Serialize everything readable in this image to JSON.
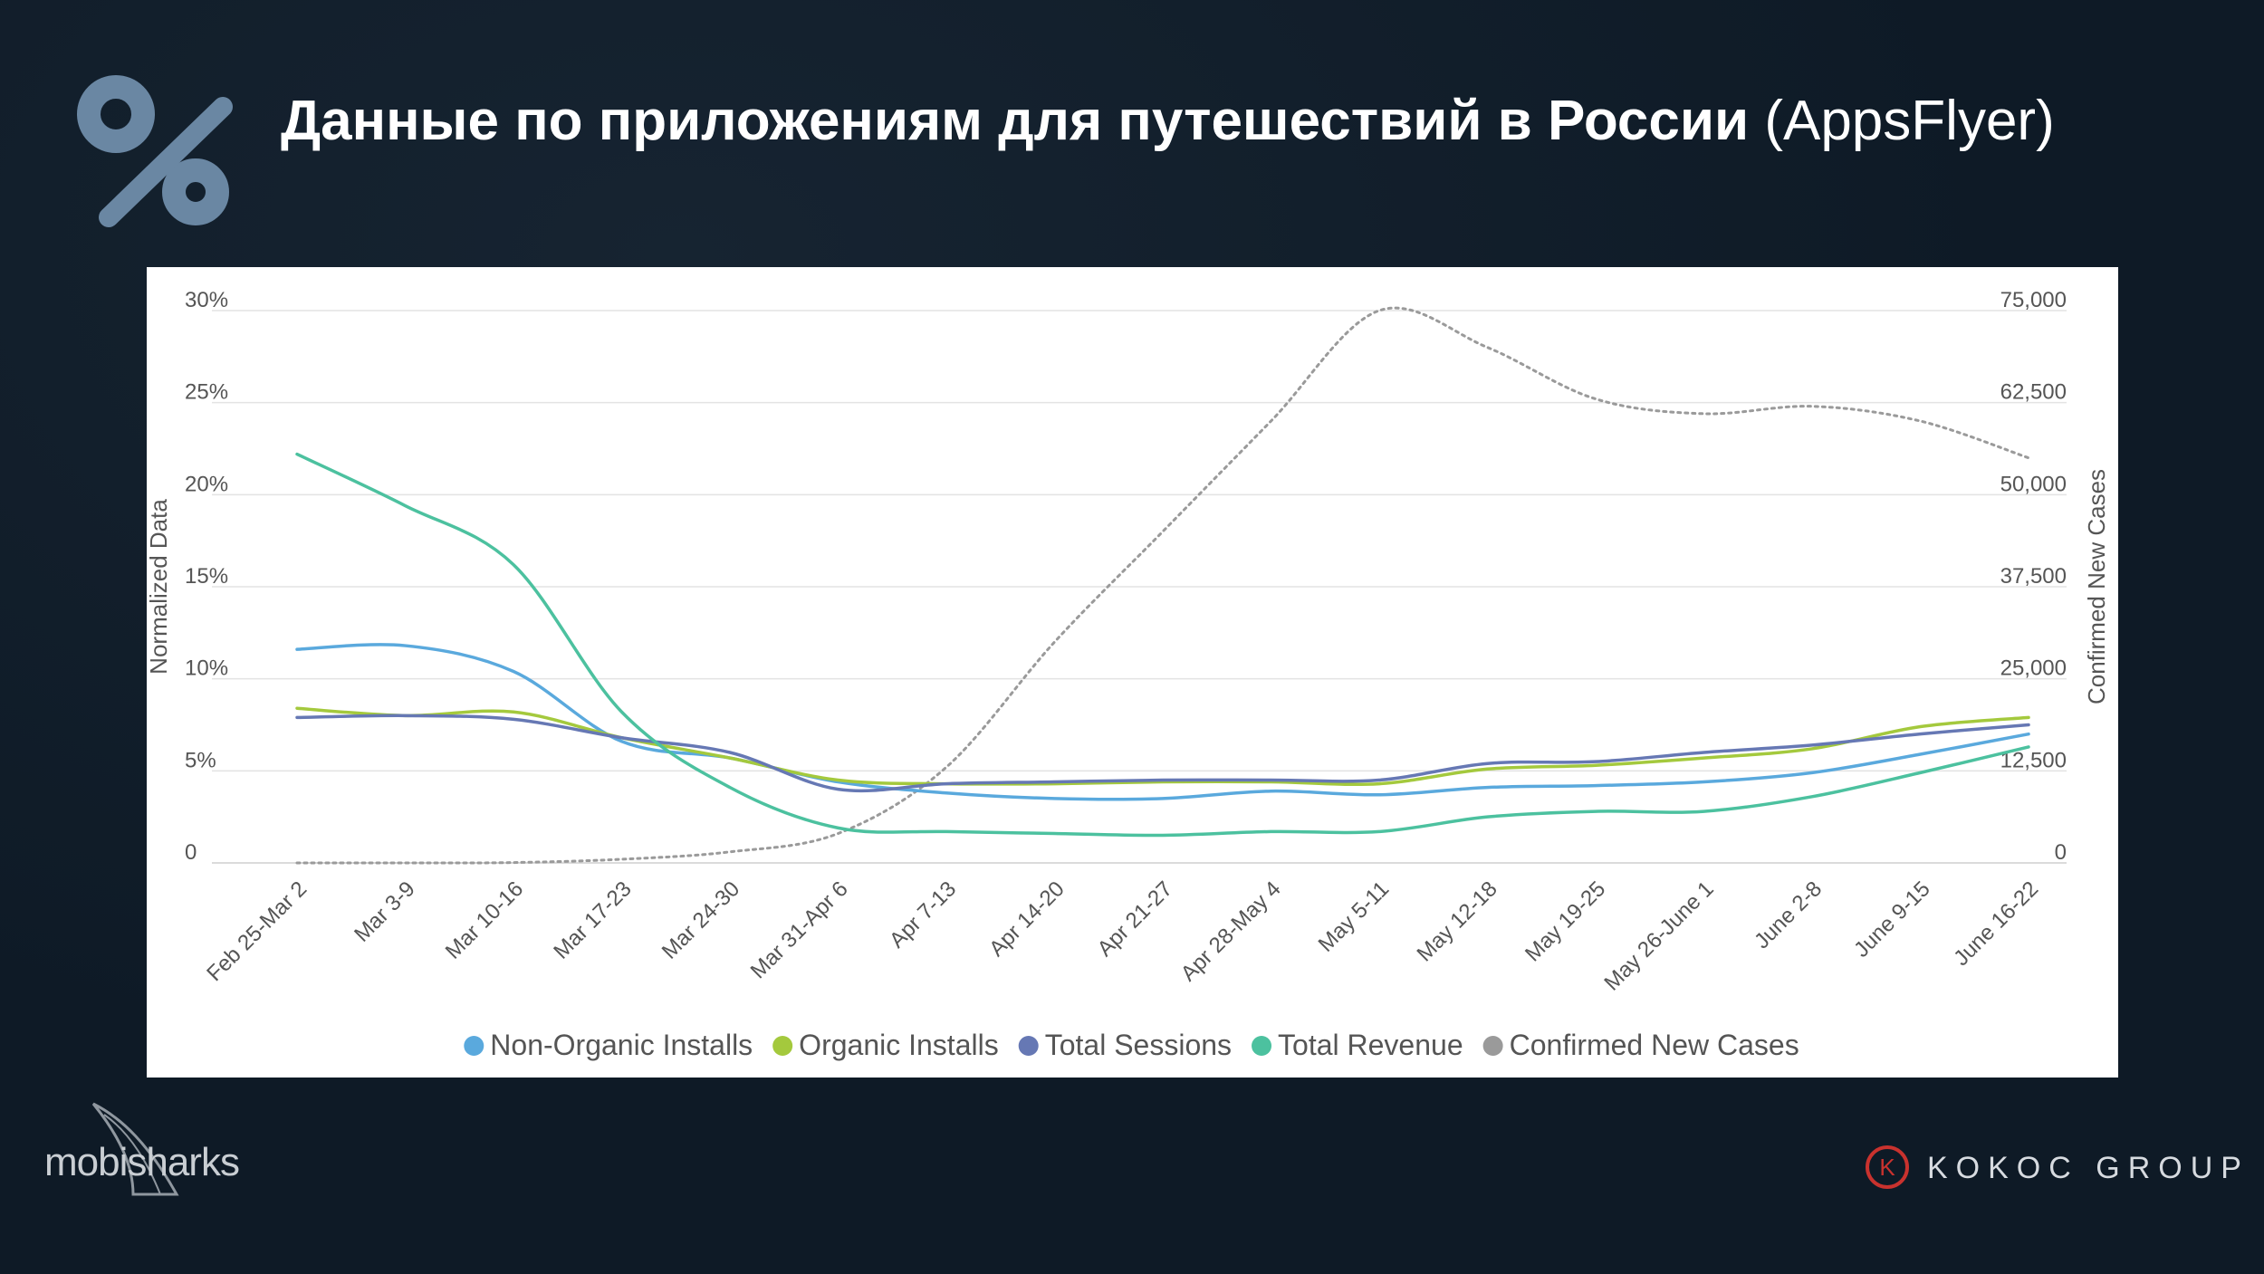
{
  "slide": {
    "title_bold": "Данные по приложениям для путешествий в России",
    "title_light": "(AppsFlyer)",
    "icon": "percent-icon",
    "brand_left": "mobisharks",
    "brand_right": "KOKOC GROUP",
    "brand_right_letter": "K"
  },
  "colors": {
    "background": "#0e1a26",
    "percent_icon": "#6a87a3",
    "kokoc_red": "#c9322e"
  },
  "chart_data": {
    "type": "line",
    "title": "",
    "xlabel": "",
    "ylabel": "Normalized Data",
    "y2label": "Confirmed New Cases",
    "categories": [
      "Feb 25-Mar 2",
      "Mar 3-9",
      "Mar 10-16",
      "Mar 17-23",
      "Mar 24-30",
      "Mar 31-Apr 6",
      "Apr 7-13",
      "Apr 14-20",
      "Apr 21-27",
      "Apr 28-May 4",
      "May 5-11",
      "May 12-18",
      "May 19-25",
      "May 26-June 1",
      "June 2-8",
      "June 9-15",
      "June 16-22"
    ],
    "ylim": [
      0,
      30
    ],
    "y_ticks": [
      "30%",
      "25%",
      "20%",
      "15%",
      "10%",
      "5%",
      "0"
    ],
    "y_tick_values": [
      30,
      25,
      20,
      15,
      10,
      5,
      0
    ],
    "y2lim": [
      0,
      75000
    ],
    "y2_ticks": [
      "75,000",
      "62,500",
      "50,000",
      "37,500",
      "25,000",
      "12,500",
      "0"
    ],
    "grid": true,
    "legend_position": "bottom",
    "series": [
      {
        "name": "Non-Organic Installs",
        "axis": "left",
        "color": "#5aa9dd",
        "dashed": false,
        "values": [
          11.6,
          11.8,
          10.4,
          6.6,
          5.7,
          4.4,
          3.8,
          3.5,
          3.5,
          3.9,
          3.7,
          4.1,
          4.2,
          4.4,
          4.9,
          5.9,
          7.0
        ]
      },
      {
        "name": "Organic Installs",
        "axis": "left",
        "color": "#a4c93d",
        "dashed": false,
        "values": [
          8.4,
          8.0,
          8.2,
          6.8,
          5.7,
          4.5,
          4.3,
          4.3,
          4.4,
          4.4,
          4.3,
          5.1,
          5.3,
          5.7,
          6.2,
          7.4,
          7.9
        ]
      },
      {
        "name": "Total Sessions",
        "axis": "left",
        "color": "#6678b4",
        "dashed": false,
        "values": [
          7.9,
          8.0,
          7.8,
          6.8,
          6.0,
          4.0,
          4.3,
          4.4,
          4.5,
          4.5,
          4.5,
          5.4,
          5.5,
          6.0,
          6.4,
          7.0,
          7.5
        ]
      },
      {
        "name": "Total Revenue",
        "axis": "left",
        "color": "#4cc19f",
        "dashed": false,
        "values": [
          22.2,
          19.4,
          16.2,
          8.2,
          4.1,
          1.9,
          1.7,
          1.6,
          1.5,
          1.7,
          1.7,
          2.5,
          2.8,
          2.8,
          3.6,
          4.9,
          6.3
        ]
      },
      {
        "name": "Confirmed New Cases",
        "axis": "right",
        "color": "#9a9a9a",
        "dashed": true,
        "values": [
          0,
          0,
          50,
          500,
          1500,
          4000,
          13000,
          30000,
          45000,
          60000,
          75000,
          70000,
          63000,
          61000,
          62000,
          60000,
          55000
        ]
      }
    ]
  }
}
